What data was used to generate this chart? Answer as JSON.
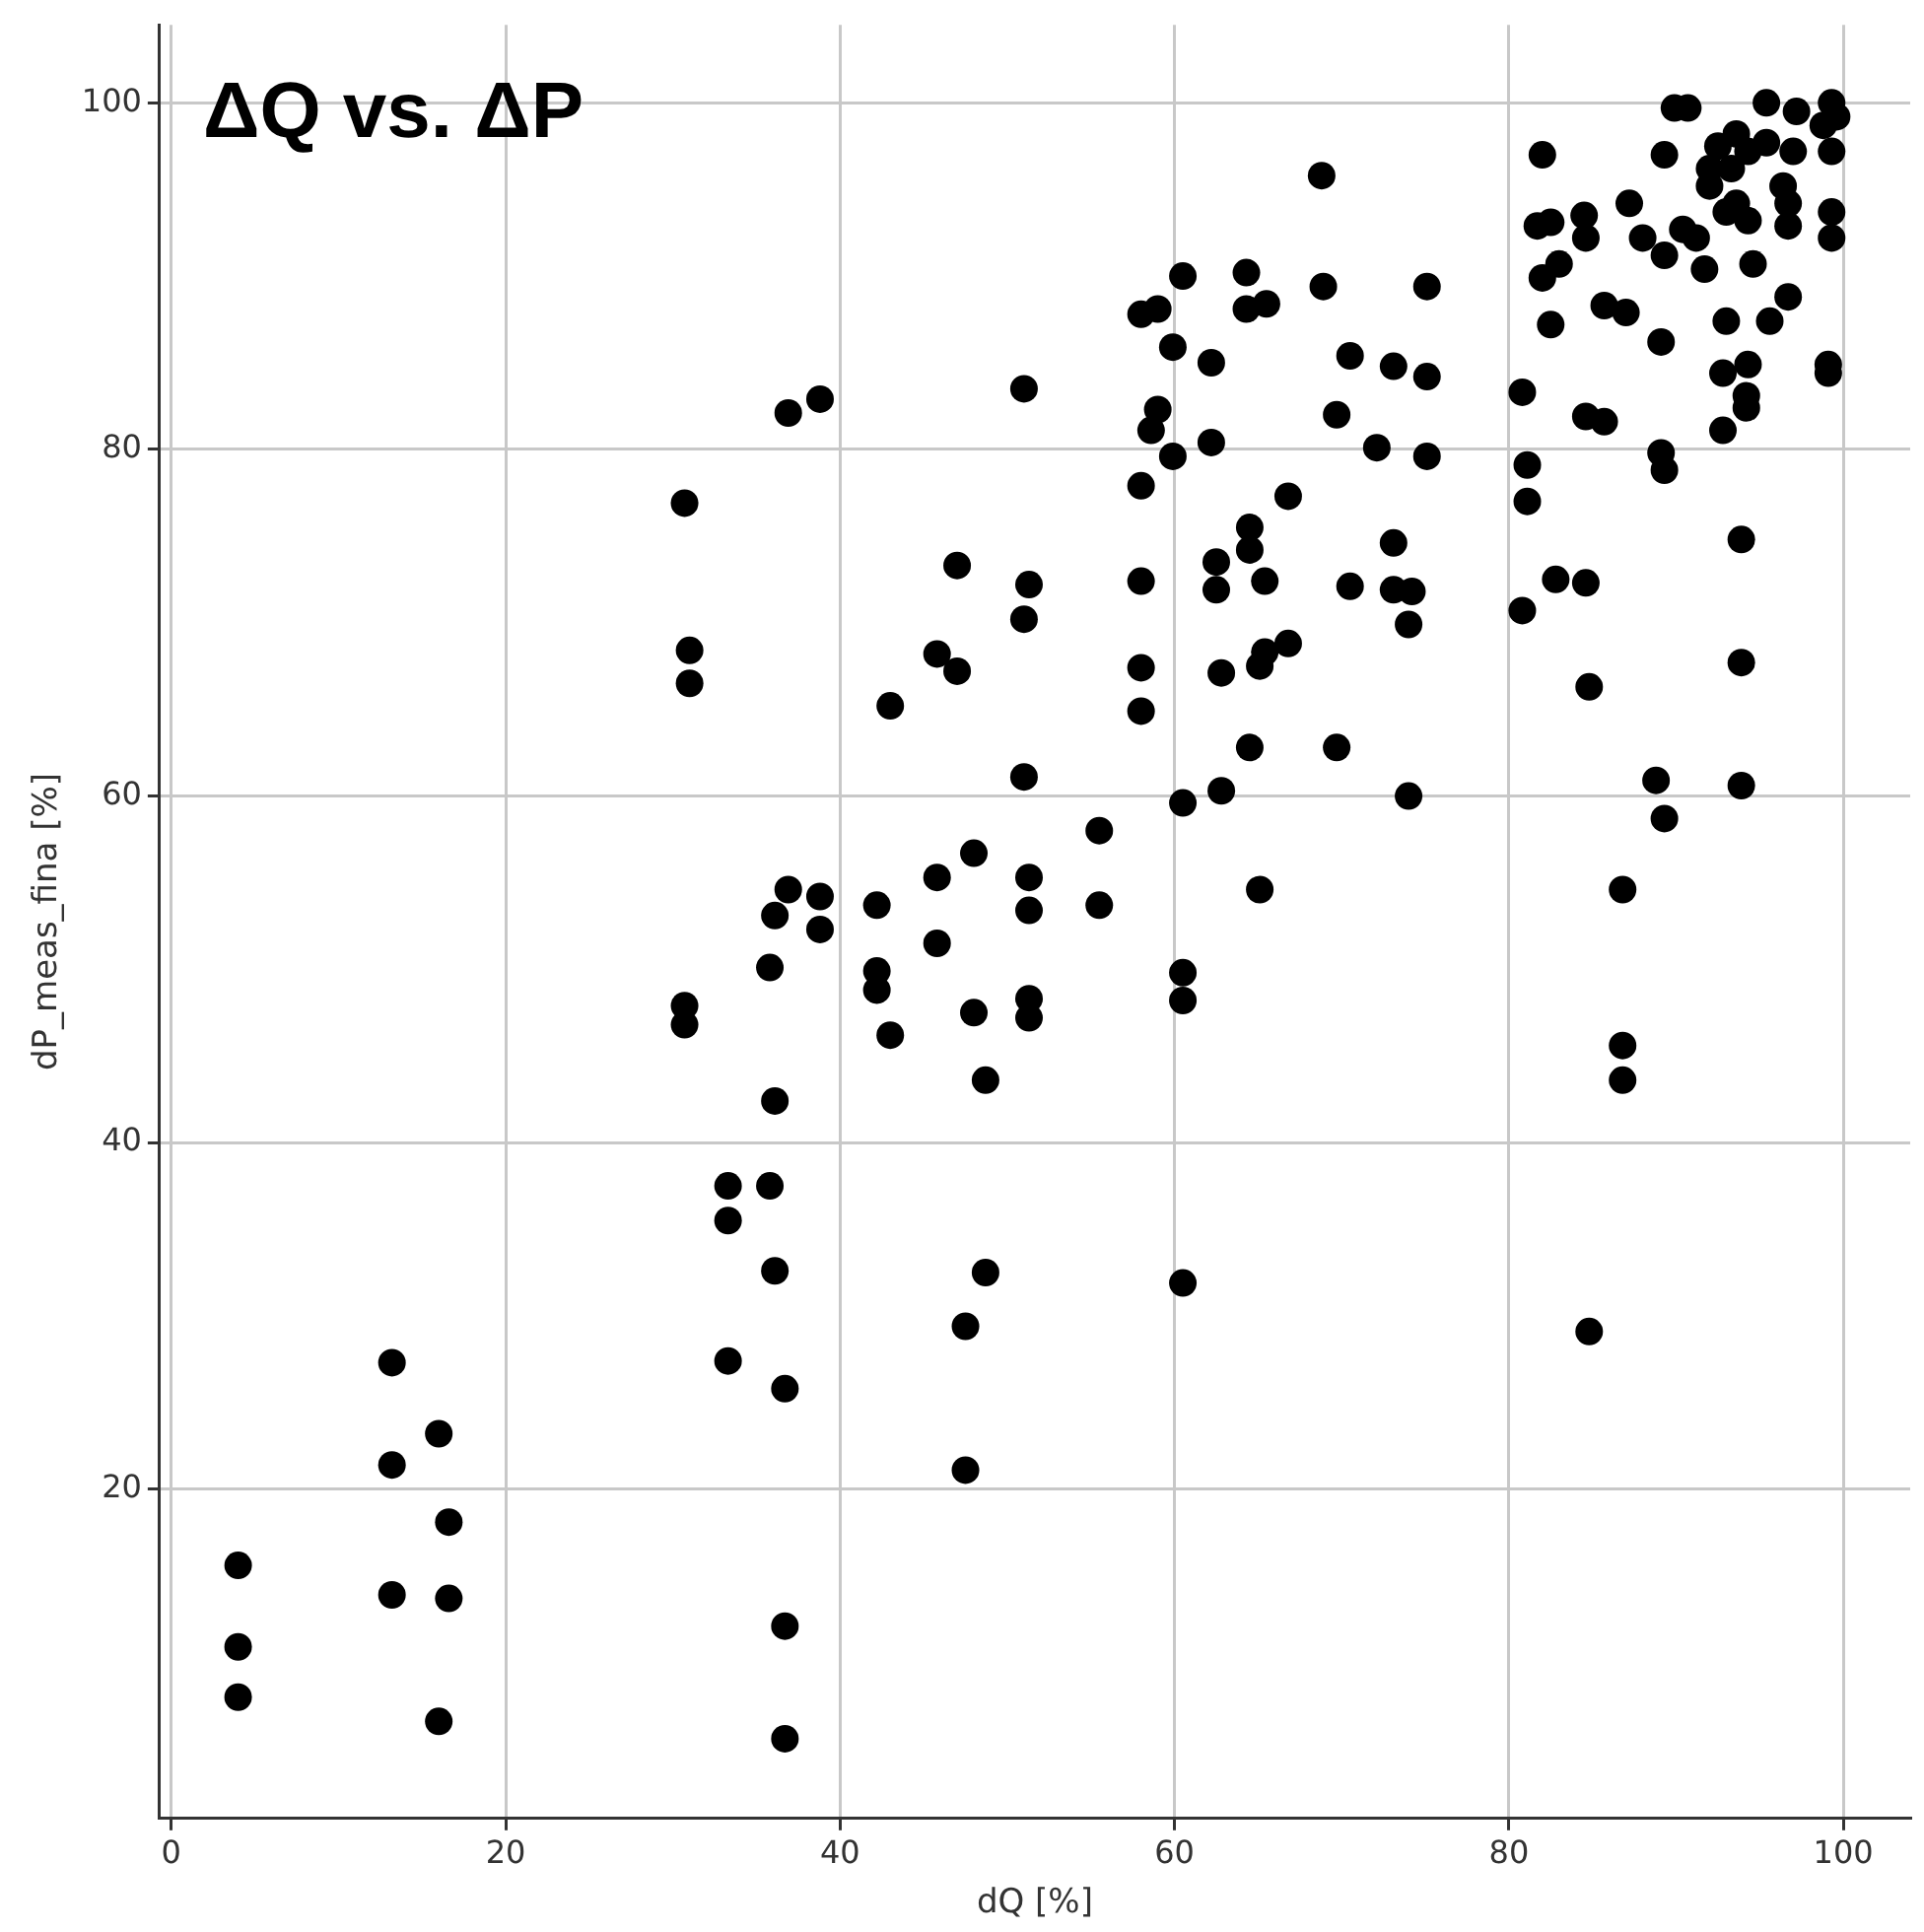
{
  "chart_data": {
    "type": "scatter",
    "title": "ΔQ vs. ΔP",
    "xlabel": "dQ [%]",
    "ylabel": "dP_meas_fina [%]",
    "xlim": [
      -0.7,
      104
    ],
    "ylim": [
      1,
      104.5
    ],
    "xticks": [
      0,
      20,
      40,
      60,
      80,
      100
    ],
    "yticks": [
      20,
      40,
      60,
      80,
      100
    ],
    "grid": true,
    "legend": false,
    "marker": "circle",
    "series": [
      {
        "color": "#000000",
        "x": [
          4.0,
          4.0,
          4.0,
          13.2,
          13.2,
          13.2,
          16.0,
          16.6,
          16.6,
          16.0,
          30.7,
          31.0,
          31.0,
          30.7,
          30.7,
          33.3,
          33.3,
          33.3,
          35.8,
          36.1,
          36.1,
          35.8,
          36.1,
          36.7,
          36.7,
          36.7,
          36.9,
          38.8,
          36.9,
          38.8,
          38.8,
          42.2,
          42.2,
          42.2,
          43.0,
          43.0,
          45.8,
          47.0,
          47.0,
          45.8,
          45.8,
          48.0,
          48.0,
          48.7,
          48.7,
          47.5,
          47.5,
          51.0,
          51.3,
          51.0,
          51.0,
          51.3,
          51.3,
          51.3,
          51.3,
          55.5,
          55.5,
          60.5,
          64.3,
          58.0,
          59.0,
          64.3,
          65.5,
          68.9,
          75.1,
          59.9,
          62.2,
          70.5,
          73.1,
          75.1,
          59.0,
          58.6,
          59.9,
          62.2,
          69.7,
          72.1,
          75.1,
          58.0,
          66.8,
          64.5,
          73.1,
          62.5,
          64.5,
          65.4,
          58.0,
          62.5,
          70.5,
          73.1,
          74.2,
          74.0,
          58.0,
          62.8,
          65.1,
          65.4,
          66.8,
          58.0,
          60.5,
          60.5,
          60.5,
          60.5,
          65.1,
          62.8,
          64.5,
          69.7,
          74.0,
          68.8,
          90.7,
          89.9,
          95.4,
          97.2,
          99.3,
          99.6,
          98.8,
          82.0,
          89.3,
          87.2,
          92.5,
          93.6,
          92.0,
          93.3,
          94.3,
          95.4,
          97.0,
          96.4,
          96.7,
          96.7,
          99.3,
          99.3,
          99.3,
          92.0,
          93.0,
          94.3,
          93.6,
          81.7,
          82.5,
          84.5,
          84.6,
          83.0,
          82.0,
          88.0,
          89.3,
          90.4,
          91.2,
          91.7,
          89.1,
          85.7,
          87.0,
          82.5,
          93.0,
          94.6,
          96.7,
          95.6,
          99.1,
          99.1,
          92.8,
          94.3,
          94.2,
          94.2,
          92.8,
          80.8,
          84.6,
          85.7,
          89.1,
          89.3,
          81.1,
          81.1,
          93.9,
          82.8,
          84.6,
          80.8,
          84.8,
          93.9,
          88.8,
          93.9,
          89.3,
          86.8,
          86.8,
          86.8,
          84.8
        ],
        "values": [
          15.6,
          10.9,
          8.0,
          27.3,
          21.4,
          13.9,
          23.2,
          18.1,
          13.7,
          6.6,
          76.9,
          68.4,
          66.5,
          47.9,
          46.8,
          37.5,
          35.5,
          27.4,
          50.1,
          53.1,
          42.4,
          37.5,
          32.6,
          25.8,
          12.1,
          5.6,
          82.1,
          82.9,
          54.6,
          54.2,
          52.3,
          53.7,
          49.9,
          48.8,
          46.2,
          65.2,
          68.2,
          67.2,
          73.3,
          55.3,
          51.5,
          56.7,
          47.5,
          43.6,
          32.5,
          29.4,
          21.1,
          83.5,
          72.2,
          70.2,
          61.1,
          55.3,
          53.4,
          48.3,
          47.2,
          58.0,
          53.7,
          90.0,
          90.2,
          87.8,
          88.1,
          88.1,
          88.4,
          89.4,
          89.4,
          85.9,
          85.0,
          85.4,
          84.8,
          84.2,
          82.3,
          81.1,
          79.6,
          80.4,
          82.0,
          80.1,
          79.6,
          77.9,
          77.3,
          75.5,
          74.6,
          73.5,
          74.2,
          72.4,
          72.4,
          71.9,
          72.1,
          71.9,
          71.8,
          69.9,
          67.4,
          67.1,
          67.5,
          68.3,
          68.8,
          64.9,
          59.6,
          49.8,
          48.2,
          31.9,
          54.6,
          60.3,
          62.8,
          62.8,
          60.0,
          95.8,
          99.7,
          99.7,
          100,
          99.5,
          100,
          99.2,
          98.7,
          97.0,
          97.0,
          94.2,
          97.5,
          98.2,
          96.2,
          96.2,
          97.2,
          97.7,
          97.2,
          95.2,
          94.2,
          92.9,
          97.2,
          93.7,
          92.2,
          95.2,
          93.7,
          93.2,
          94.2,
          92.9,
          93.1,
          93.5,
          92.2,
          90.7,
          89.9,
          92.2,
          91.2,
          92.7,
          92.2,
          90.4,
          86.2,
          88.3,
          87.9,
          87.2,
          87.4,
          90.7,
          88.8,
          87.4,
          84.9,
          84.4,
          84.4,
          84.9,
          83.1,
          82.4,
          81.1,
          83.3,
          81.9,
          81.6,
          79.8,
          78.8,
          79.1,
          77.0,
          74.8,
          72.5,
          72.3,
          70.7,
          66.3,
          67.7,
          60.9,
          60.6,
          58.7,
          54.6,
          45.6,
          43.6,
          29.1
        ]
      }
    ]
  }
}
